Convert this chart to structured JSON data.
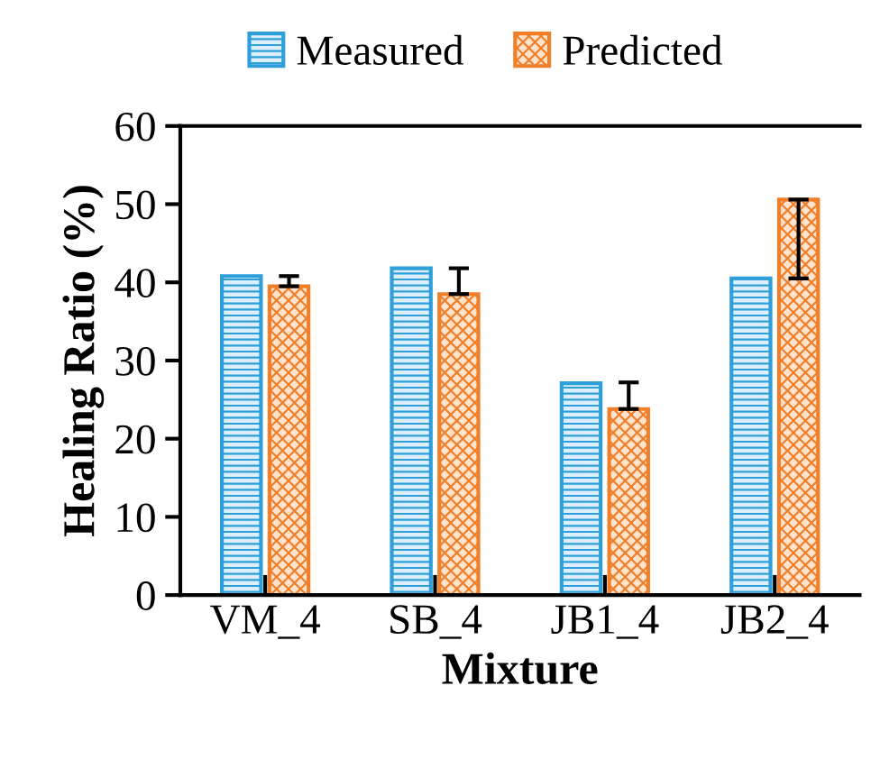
{
  "chart_data": {
    "type": "bar",
    "xlabel": "Mixture",
    "ylabel": "Healing Ratio (%)",
    "categories": [
      "VM_4",
      "SB_4",
      "JB1_4",
      "JB2_4"
    ],
    "series": [
      {
        "name": "Measured",
        "color": "#2e9fd8",
        "values": [
          40.8,
          41.8,
          27.1,
          40.5
        ]
      },
      {
        "name": "Predicted",
        "color": "#f07f2a",
        "values": [
          39.5,
          38.5,
          23.8,
          50.6
        ],
        "errors": [
          [
            39.5,
            40.8
          ],
          [
            38.5,
            41.8
          ],
          [
            23.8,
            27.2
          ],
          [
            40.5,
            50.6
          ]
        ]
      }
    ],
    "ylim": [
      0,
      60
    ],
    "yticks": [
      0,
      10,
      20,
      30,
      40,
      50,
      60
    ],
    "grid": false,
    "legend": "top"
  }
}
